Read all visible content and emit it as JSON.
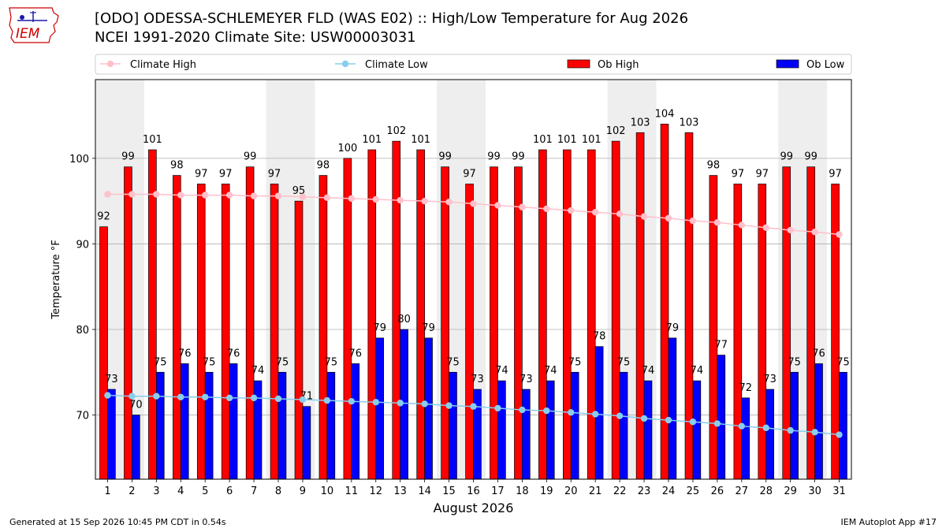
{
  "header": {
    "title_line1": "[ODO] ODESSA-SCHLEMEYER FLD (WAS E02) :: High/Low Temperature for Aug 2026",
    "title_line2": "NCEI 1991-2020 Climate Site: USW00003031"
  },
  "logo": {
    "text": "IEM",
    "brand_color": "#cc0000",
    "icon": "iowa-state-outline-with-weather-instruments"
  },
  "footer": {
    "generated": "Generated at 15 Sep 2026 10:45 PM CDT in 0.54s",
    "app": "IEM Autoplot App #17"
  },
  "chart_data": {
    "type": "bar",
    "xlabel": "August 2026",
    "ylabel": "Temperature °F",
    "ylim": [
      62.5,
      109.2
    ],
    "yticks": [
      70,
      80,
      90,
      100
    ],
    "grid": true,
    "legend_placement": "top",
    "weekend_shading": [
      [
        1,
        2
      ],
      [
        8,
        9
      ],
      [
        15,
        16
      ],
      [
        22,
        23
      ],
      [
        29,
        30
      ]
    ],
    "categories": [
      1,
      2,
      3,
      4,
      5,
      6,
      7,
      8,
      9,
      10,
      11,
      12,
      13,
      14,
      15,
      16,
      17,
      18,
      19,
      20,
      21,
      22,
      23,
      24,
      25,
      26,
      27,
      28,
      29,
      30,
      31
    ],
    "legend": [
      {
        "name": "Climate High",
        "kind": "line",
        "color": "#ffc0cb"
      },
      {
        "name": "Climate Low",
        "kind": "line",
        "color": "#87ceeb"
      },
      {
        "name": "Ob High",
        "kind": "bar",
        "color": "#ff0000"
      },
      {
        "name": "Ob Low",
        "kind": "bar",
        "color": "#0000ff"
      }
    ],
    "series": [
      {
        "name": "Ob High",
        "kind": "bar",
        "color": "#ff0000",
        "values": [
          92,
          99,
          101,
          98,
          97,
          97,
          99,
          97,
          95,
          98,
          100,
          101,
          102,
          101,
          99,
          97,
          99,
          99,
          101,
          101,
          101,
          102,
          103,
          104,
          103,
          98,
          97,
          97,
          99,
          99,
          97
        ]
      },
      {
        "name": "Ob Low",
        "kind": "bar",
        "color": "#0000ff",
        "values": [
          73,
          70,
          75,
          76,
          75,
          76,
          74,
          75,
          71,
          75,
          76,
          79,
          80,
          79,
          75,
          73,
          74,
          73,
          74,
          75,
          78,
          75,
          74,
          79,
          74,
          77,
          72,
          73,
          75,
          76,
          75
        ]
      },
      {
        "name": "Climate High",
        "kind": "line",
        "color": "#ffc0cb",
        "values": [
          95.8,
          95.8,
          95.8,
          95.7,
          95.7,
          95.7,
          95.6,
          95.6,
          95.5,
          95.4,
          95.3,
          95.2,
          95.1,
          95.0,
          94.9,
          94.7,
          94.5,
          94.3,
          94.1,
          93.9,
          93.7,
          93.5,
          93.2,
          93.0,
          92.7,
          92.5,
          92.2,
          91.9,
          91.6,
          91.4,
          91.1
        ]
      },
      {
        "name": "Climate Low",
        "kind": "line",
        "color": "#87ceeb",
        "values": [
          72.3,
          72.2,
          72.2,
          72.1,
          72.1,
          72.0,
          72.0,
          71.9,
          71.8,
          71.7,
          71.6,
          71.5,
          71.4,
          71.3,
          71.1,
          71.0,
          70.8,
          70.6,
          70.5,
          70.3,
          70.1,
          69.9,
          69.6,
          69.4,
          69.2,
          69.0,
          68.7,
          68.5,
          68.2,
          68.0,
          67.7
        ]
      }
    ]
  }
}
